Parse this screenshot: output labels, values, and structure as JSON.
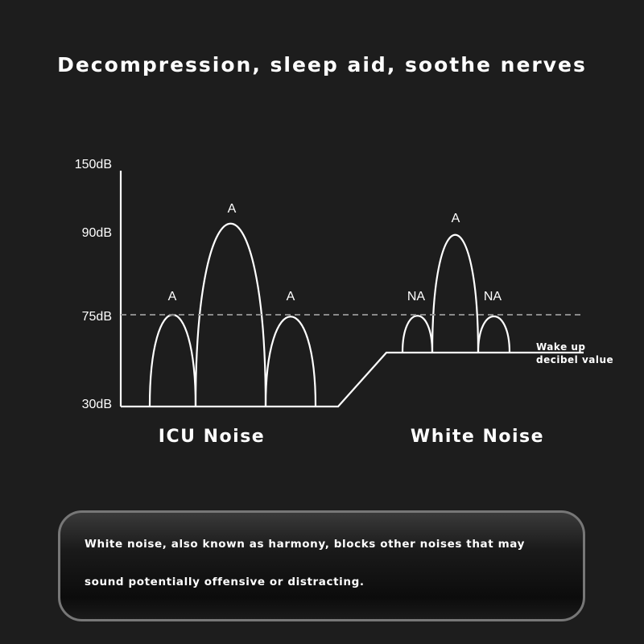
{
  "title": "Decompression, sleep aid, soothe nerves",
  "y_axis_labels": [
    "150dB",
    "90dB",
    "75dB",
    "30dB"
  ],
  "groups": [
    {
      "name": "ICU Noise",
      "peak_labels": [
        "A",
        "A",
        "A"
      ]
    },
    {
      "name": "White Noise",
      "peak_labels": [
        "NA",
        "A",
        "NA"
      ]
    }
  ],
  "wake_up_label": [
    "Wake up",
    "decibel value"
  ],
  "description": [
    "White noise, also known as harmony, blocks other noises that may",
    "sound potentially offensive or distracting."
  ],
  "colors": {
    "background": "#1d1d1d",
    "lines": "#ffffff",
    "threshold_dashed": "#8a8a8a"
  }
}
